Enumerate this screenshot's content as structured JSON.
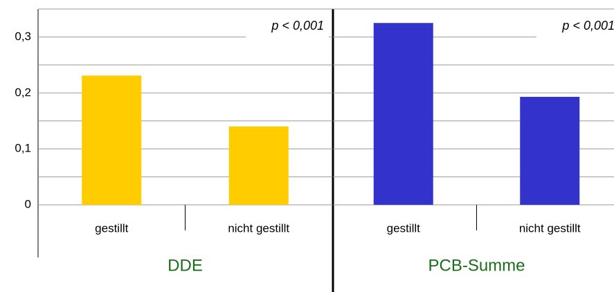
{
  "chart_data": [
    {
      "type": "bar",
      "title": "DDE",
      "annotation": "p < 0,001",
      "categories": [
        "gestillt",
        "nicht gestillt"
      ],
      "values": [
        0.231,
        0.14
      ],
      "color": "#ffcc00",
      "ylim": [
        0,
        0.35
      ],
      "yticks": [
        0,
        {
          "value": 0.1,
          "label": "0,1"
        },
        {
          "value": 0.2,
          "label": "0,2"
        },
        {
          "value": 0.3,
          "label": "0,3"
        }
      ],
      "minor_yticks": [
        0.05,
        0.15,
        0.25,
        0.35
      ],
      "grid": true
    },
    {
      "type": "bar",
      "title": "PCB-Summe",
      "annotation": "p < 0,001",
      "categories": [
        "gestillt",
        "nicht gestillt"
      ],
      "values": [
        0.325,
        0.193
      ],
      "color": "#3333cc",
      "ylim": [
        0,
        0.35
      ],
      "yticks": [
        0,
        {
          "value": 0.1,
          "label": "0,1"
        },
        {
          "value": 0.2,
          "label": "0,2"
        },
        {
          "value": 0.3,
          "label": "0,3"
        }
      ],
      "minor_yticks": [
        0.05,
        0.15,
        0.25,
        0.35
      ],
      "grid": true
    }
  ]
}
